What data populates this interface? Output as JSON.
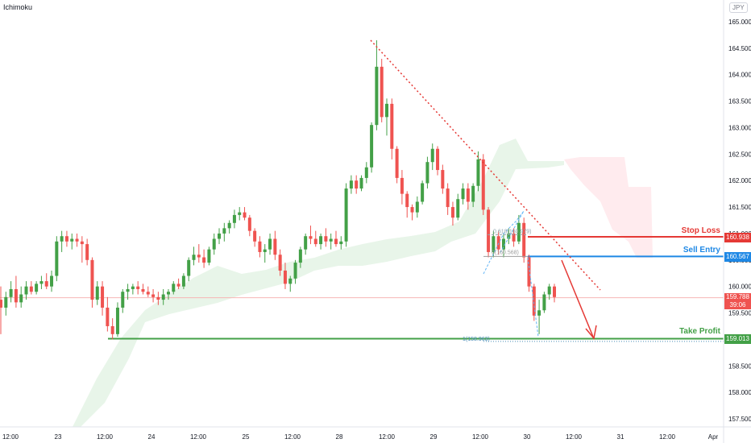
{
  "header": {
    "indicator_name": "Ichimoku",
    "currency": "JPY"
  },
  "annotations": {
    "stop_loss_label": "Stop Loss",
    "sell_entry_label": "Sell Entry",
    "take_profit_label": "Take Profit",
    "stop_loss_value": "160.938",
    "sell_entry_value": "160.567",
    "take_profit_value": "159.013",
    "current_price": "159.788",
    "countdown": "39:06",
    "fib_label_1": "1(158.963)",
    "fib_label_2": "0.618(160.979)",
    "fib_label_3": "0(160.568)"
  },
  "colors": {
    "up": "#26a69a",
    "down": "#ef5350",
    "up_body": "#43a047",
    "stop": "#e53935",
    "entry": "#1e88e5",
    "target": "#43a047",
    "cloud_bull": "#e8f5e9",
    "cloud_bear": "#ffebee"
  },
  "chart_data": {
    "type": "candlestick",
    "title": "",
    "y_ticks": [
      "165.000",
      "164.500",
      "164.000",
      "163.500",
      "163.000",
      "162.500",
      "162.000",
      "161.500",
      "161.000",
      "160.500",
      "160.000",
      "159.500",
      "159.000",
      "158.500",
      "158.000",
      "157.500"
    ],
    "ylim": [
      157.3,
      165.2
    ],
    "x_ticks": [
      "12:00",
      "23",
      "12:00",
      "24",
      "12:00",
      "25",
      "12:00",
      "28",
      "12:00",
      "29",
      "12:00",
      "30",
      "12:00",
      "31",
      "12:00",
      "Apr"
    ],
    "levels": {
      "stop_loss": 160.938,
      "sell_entry": 160.567,
      "take_profit": 159.013,
      "current": 159.788,
      "fib_1": 158.963
    },
    "candles": [
      [
        159.75,
        160.0,
        159.1,
        159.6
      ],
      [
        159.6,
        159.9,
        159.45,
        159.8
      ],
      [
        159.8,
        160.1,
        159.7,
        159.95
      ],
      [
        159.95,
        160.2,
        159.6,
        159.7
      ],
      [
        159.7,
        160.0,
        159.6,
        159.85
      ],
      [
        159.85,
        160.1,
        159.75,
        160.0
      ],
      [
        160.0,
        160.1,
        159.85,
        159.9
      ],
      [
        159.9,
        160.1,
        159.85,
        160.05
      ],
      [
        160.05,
        160.2,
        159.95,
        160.1
      ],
      [
        160.1,
        160.25,
        159.95,
        160.0
      ],
      [
        160.0,
        160.3,
        159.9,
        160.2
      ],
      [
        160.2,
        160.95,
        160.1,
        160.85
      ],
      [
        160.85,
        161.05,
        160.65,
        160.95
      ],
      [
        160.95,
        161.05,
        160.75,
        160.85
      ],
      [
        160.85,
        161.0,
        160.7,
        160.9
      ],
      [
        160.9,
        161.0,
        160.75,
        160.85
      ],
      [
        160.85,
        160.95,
        160.45,
        160.8
      ],
      [
        160.8,
        160.9,
        160.4,
        160.5
      ],
      [
        160.5,
        160.55,
        159.6,
        159.75
      ],
      [
        159.75,
        160.1,
        159.65,
        160.0
      ],
      [
        160.0,
        160.1,
        159.45,
        159.6
      ],
      [
        159.6,
        159.8,
        159.15,
        159.25
      ],
      [
        159.25,
        159.4,
        159.0,
        159.1
      ],
      [
        159.1,
        159.7,
        159.05,
        159.6
      ],
      [
        159.6,
        159.95,
        159.5,
        159.9
      ],
      [
        159.9,
        160.05,
        159.75,
        159.95
      ],
      [
        159.95,
        160.05,
        159.85,
        160.0
      ],
      [
        160.0,
        160.1,
        159.85,
        159.95
      ],
      [
        159.95,
        160.05,
        159.85,
        159.9
      ],
      [
        159.9,
        160.0,
        159.8,
        159.85
      ],
      [
        159.85,
        159.95,
        159.7,
        159.8
      ],
      [
        159.8,
        159.9,
        159.65,
        159.75
      ],
      [
        159.75,
        159.95,
        159.65,
        159.85
      ],
      [
        159.85,
        159.95,
        159.75,
        159.9
      ],
      [
        159.9,
        160.1,
        159.85,
        160.05
      ],
      [
        160.05,
        160.15,
        159.95,
        160.0
      ],
      [
        160.0,
        160.25,
        159.95,
        160.2
      ],
      [
        160.2,
        160.55,
        160.1,
        160.5
      ],
      [
        160.5,
        160.75,
        160.4,
        160.6
      ],
      [
        160.6,
        160.8,
        160.45,
        160.55
      ],
      [
        160.55,
        160.7,
        160.35,
        160.45
      ],
      [
        160.45,
        160.75,
        160.4,
        160.7
      ],
      [
        160.7,
        161.0,
        160.6,
        160.9
      ],
      [
        160.9,
        161.1,
        160.8,
        161.0
      ],
      [
        161.0,
        161.2,
        160.85,
        161.1
      ],
      [
        161.1,
        161.25,
        161.0,
        161.2
      ],
      [
        161.2,
        161.45,
        161.1,
        161.35
      ],
      [
        161.35,
        161.5,
        161.25,
        161.4
      ],
      [
        161.4,
        161.5,
        161.25,
        161.3
      ],
      [
        161.3,
        161.35,
        160.95,
        161.05
      ],
      [
        161.05,
        161.1,
        160.75,
        160.85
      ],
      [
        160.85,
        160.95,
        160.55,
        160.65
      ],
      [
        160.65,
        160.8,
        160.45,
        160.7
      ],
      [
        160.7,
        161.0,
        160.6,
        160.9
      ],
      [
        160.9,
        161.05,
        160.5,
        160.6
      ],
      [
        160.6,
        160.7,
        160.2,
        160.3
      ],
      [
        160.3,
        160.45,
        159.95,
        160.05
      ],
      [
        160.05,
        160.2,
        159.9,
        160.15
      ],
      [
        160.15,
        160.5,
        160.05,
        160.45
      ],
      [
        160.45,
        160.75,
        160.35,
        160.7
      ],
      [
        160.7,
        161.0,
        160.6,
        160.95
      ],
      [
        160.95,
        161.15,
        160.8,
        160.9
      ],
      [
        160.9,
        161.05,
        160.75,
        160.8
      ],
      [
        160.8,
        161.0,
        160.7,
        160.95
      ],
      [
        160.95,
        161.1,
        160.75,
        160.85
      ],
      [
        160.85,
        161.0,
        160.7,
        160.9
      ],
      [
        160.9,
        161.05,
        160.75,
        160.8
      ],
      [
        160.8,
        160.95,
        160.7,
        160.85
      ],
      [
        160.85,
        161.95,
        160.75,
        161.85
      ],
      [
        161.85,
        162.1,
        161.75,
        162.0
      ],
      [
        162.0,
        162.1,
        161.75,
        161.85
      ],
      [
        161.85,
        162.1,
        161.8,
        162.05
      ],
      [
        162.05,
        162.35,
        161.95,
        162.25
      ],
      [
        162.25,
        163.1,
        162.15,
        163.05
      ],
      [
        163.05,
        164.65,
        162.95,
        164.15
      ],
      [
        164.15,
        164.3,
        163.1,
        163.2
      ],
      [
        163.2,
        163.55,
        162.85,
        163.45
      ],
      [
        163.45,
        163.55,
        162.4,
        162.6
      ],
      [
        162.6,
        162.65,
        161.95,
        162.05
      ],
      [
        162.05,
        162.2,
        161.55,
        161.75
      ],
      [
        161.75,
        161.8,
        161.3,
        161.5
      ],
      [
        161.5,
        161.55,
        161.25,
        161.4
      ],
      [
        161.4,
        161.7,
        161.3,
        161.6
      ],
      [
        161.6,
        162.0,
        161.55,
        161.95
      ],
      [
        161.95,
        162.45,
        161.85,
        162.35
      ],
      [
        162.35,
        162.7,
        162.2,
        162.6
      ],
      [
        162.6,
        162.65,
        162.1,
        162.2
      ],
      [
        162.2,
        162.3,
        161.75,
        161.85
      ],
      [
        161.85,
        161.95,
        161.35,
        161.5
      ],
      [
        161.5,
        161.6,
        161.15,
        161.3
      ],
      [
        161.3,
        161.75,
        161.25,
        161.65
      ],
      [
        161.65,
        161.95,
        161.55,
        161.85
      ],
      [
        161.85,
        161.95,
        161.45,
        161.6
      ],
      [
        161.6,
        161.95,
        161.5,
        161.9
      ],
      [
        161.9,
        162.55,
        161.8,
        162.4
      ],
      [
        162.4,
        162.5,
        161.35,
        161.45
      ],
      [
        161.45,
        161.5,
        160.55,
        160.65
      ],
      [
        160.65,
        161.05,
        160.55,
        160.95
      ],
      [
        160.95,
        161.05,
        160.6,
        160.7
      ],
      [
        160.7,
        161.0,
        160.55,
        160.9
      ],
      [
        160.9,
        161.1,
        160.8,
        161.0
      ],
      [
        161.0,
        161.1,
        160.75,
        160.85
      ],
      [
        160.85,
        161.35,
        160.8,
        161.2
      ],
      [
        161.2,
        161.3,
        160.45,
        160.55
      ],
      [
        160.55,
        160.6,
        159.9,
        160.0
      ],
      [
        160.0,
        160.05,
        159.35,
        159.45
      ],
      [
        159.45,
        159.75,
        159.1,
        159.55
      ],
      [
        159.55,
        159.9,
        159.5,
        159.85
      ],
      [
        159.85,
        160.05,
        159.75,
        160.0
      ],
      [
        160.0,
        160.05,
        159.7,
        159.8
      ]
    ]
  }
}
